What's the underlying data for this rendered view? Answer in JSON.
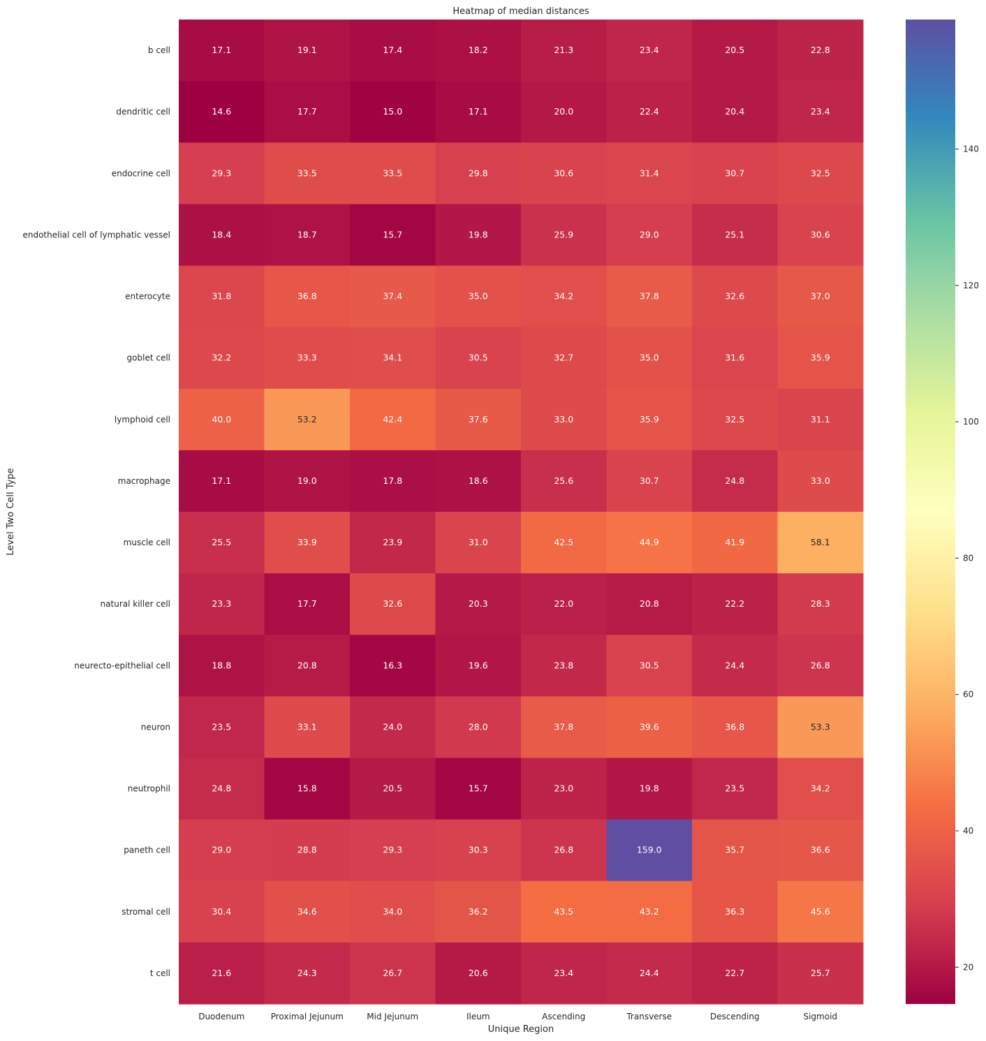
{
  "chart_data": {
    "type": "heatmap",
    "title": "Heatmap of median distances",
    "xlabel": "Unique Region",
    "ylabel": "Level Two Cell Type",
    "colormap": "Spectral",
    "value_range": [
      14.6,
      159.0
    ],
    "annotation_format": "0.1f",
    "x_categories": [
      "Duodenum",
      "Proximal Jejunum",
      "Mid Jejunum",
      "Ileum",
      "Ascending",
      "Transverse",
      "Descending",
      "Sigmoid"
    ],
    "y_categories": [
      "b cell",
      "dendritic cell",
      "endocrine cell",
      "endothelial cell of lymphatic vessel",
      "enterocyte",
      "goblet cell",
      "lymphoid cell",
      "macrophage",
      "muscle cell",
      "natural killer cell",
      "neurecto-epithelial cell",
      "neuron",
      "neutrophil",
      "paneth cell",
      "stromal cell",
      "t cell"
    ],
    "values": [
      [
        17.1,
        19.1,
        17.4,
        18.2,
        21.3,
        23.4,
        20.5,
        22.8
      ],
      [
        14.6,
        17.7,
        15.0,
        17.1,
        20.0,
        22.4,
        20.4,
        23.4
      ],
      [
        29.3,
        33.5,
        33.5,
        29.8,
        30.6,
        31.4,
        30.7,
        32.5
      ],
      [
        18.4,
        18.7,
        15.7,
        19.8,
        25.9,
        29.0,
        25.1,
        30.6
      ],
      [
        31.8,
        36.8,
        37.4,
        35.0,
        34.2,
        37.8,
        32.6,
        37.0
      ],
      [
        32.2,
        33.3,
        34.1,
        30.5,
        32.7,
        35.0,
        31.6,
        35.9
      ],
      [
        40.0,
        53.2,
        42.4,
        37.6,
        33.0,
        35.9,
        32.5,
        31.1
      ],
      [
        17.1,
        19.0,
        17.8,
        18.6,
        25.6,
        30.7,
        24.8,
        33.0
      ],
      [
        25.5,
        33.9,
        23.9,
        31.0,
        42.5,
        44.9,
        41.9,
        58.1
      ],
      [
        23.3,
        17.7,
        32.6,
        20.3,
        22.0,
        20.8,
        22.2,
        28.3
      ],
      [
        18.8,
        20.8,
        16.3,
        19.6,
        23.8,
        30.5,
        24.4,
        26.8
      ],
      [
        23.5,
        33.1,
        24.0,
        28.0,
        37.8,
        39.6,
        36.8,
        53.3
      ],
      [
        24.8,
        15.8,
        20.5,
        15.7,
        23.0,
        19.8,
        23.5,
        34.2
      ],
      [
        29.0,
        28.8,
        29.3,
        30.3,
        26.8,
        159.0,
        35.7,
        36.6
      ],
      [
        30.4,
        34.6,
        34.0,
        36.2,
        43.5,
        43.2,
        36.3,
        45.6
      ],
      [
        21.6,
        24.3,
        26.7,
        20.6,
        23.4,
        24.4,
        22.7,
        25.7
      ]
    ],
    "colorbar": {
      "ticks": [
        20,
        40,
        60,
        80,
        100,
        120,
        140
      ],
      "tick_labels": [
        "20",
        "40",
        "60",
        "80",
        "100",
        "120",
        "140"
      ],
      "placement": "right"
    },
    "grid": false,
    "annotation_text_colors": {
      "light": "#ffffff",
      "dark": "#262626"
    }
  }
}
